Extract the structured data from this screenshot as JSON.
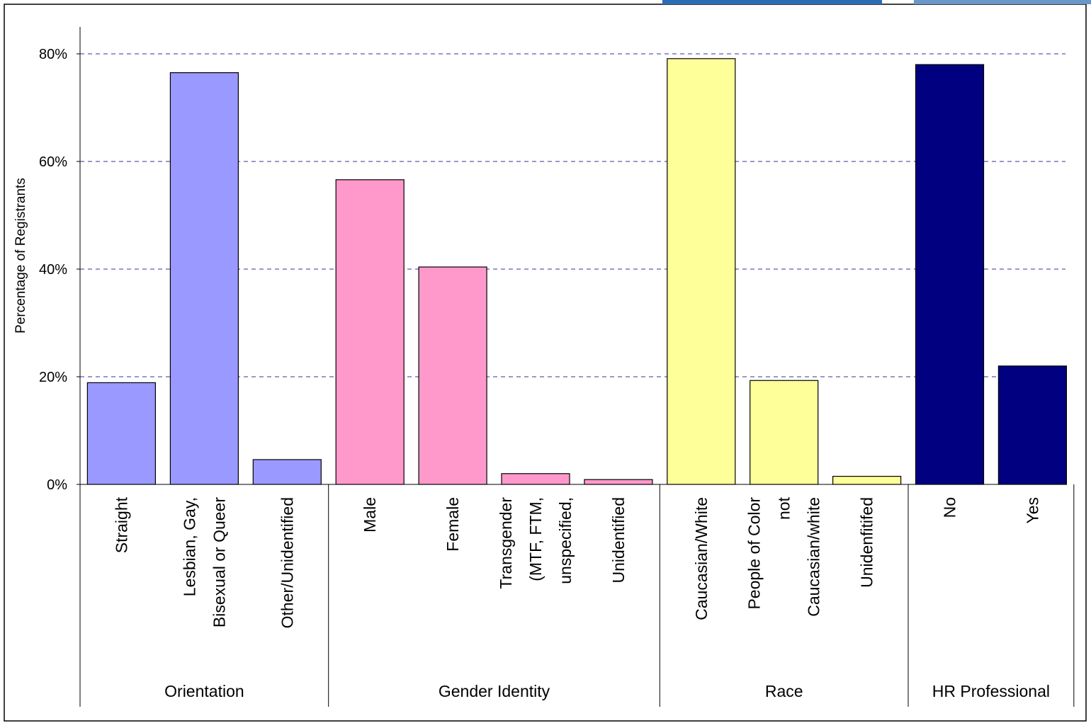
{
  "chart_data": {
    "type": "bar",
    "title": "",
    "xlabel": "",
    "ylabel": "Percentage of Registrants",
    "ylim": [
      0,
      85
    ],
    "yticks": [
      "0%",
      "20%",
      "40%",
      "60%",
      "80%"
    ],
    "ytick_values": [
      0,
      20,
      40,
      60,
      80
    ],
    "grid": true,
    "legend": "none",
    "groups": [
      {
        "name": "Orientation",
        "color": "#9999ff",
        "categories": [
          "Straight",
          "Lesbian, Gay, Bisexual or Queer",
          "Other/Unidentified"
        ],
        "label_lines": [
          [
            "Straight"
          ],
          [
            "Lesbian, Gay,",
            "Bisexual or Queer"
          ],
          [
            "Other/Unidentified"
          ]
        ],
        "values": [
          18.9,
          76.5,
          4.6
        ]
      },
      {
        "name": "Gender Identity",
        "color": "#ff99cc",
        "categories": [
          "Male",
          "Female",
          "Transgender (MTF, FTM, unspecified,",
          "Unidentified"
        ],
        "label_lines": [
          [
            "Male"
          ],
          [
            "Female"
          ],
          [
            "Transgender",
            "(MTF, FTM,",
            "unspecified,"
          ],
          [
            "Unidentified"
          ]
        ],
        "values": [
          56.6,
          40.4,
          2.0,
          0.9
        ]
      },
      {
        "name": "Race",
        "color": "#ffff99",
        "categories": [
          "Caucasian/White",
          "People of Color not Caucasian/white",
          "Unidenfitifed"
        ],
        "label_lines": [
          [
            "Caucasian/White"
          ],
          [
            "People of Color",
            "not",
            "Caucasian/white"
          ],
          [
            "Unidenfitifed"
          ]
        ],
        "values": [
          79.1,
          19.3,
          1.5
        ]
      },
      {
        "name": "HR Professional",
        "color": "#000080",
        "categories": [
          "No",
          "Yes"
        ],
        "label_lines": [
          [
            "No"
          ],
          [
            "Yes"
          ]
        ],
        "values": [
          78.0,
          22.0
        ]
      }
    ]
  }
}
